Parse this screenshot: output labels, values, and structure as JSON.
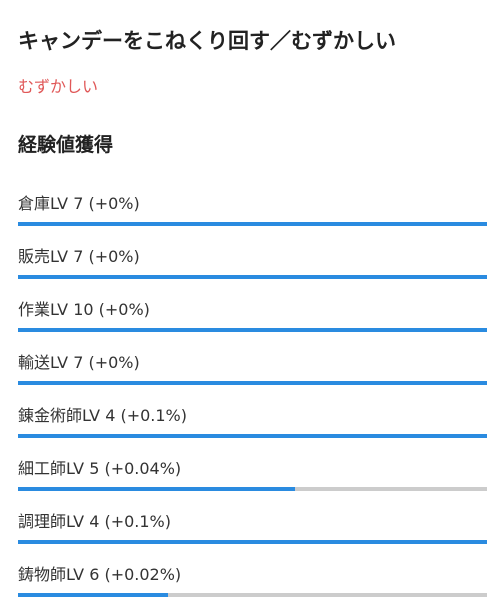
{
  "page": {
    "title": "キャンデーをこねくり回す／むずかしい",
    "difficulty": "むずかしい",
    "section_heading": "経験値獲得"
  },
  "colors": {
    "difficulty_text": "#e05858",
    "bar_fill": "#2a8be0",
    "bar_track": "#cccccc"
  },
  "exp": {
    "items": [
      {
        "label": "倉庫LV 7 (+0%)",
        "progress": 1.0
      },
      {
        "label": "販売LV 7 (+0%)",
        "progress": 1.0
      },
      {
        "label": "作業LV 10 (+0%)",
        "progress": 1.0
      },
      {
        "label": "輸送LV 7 (+0%)",
        "progress": 1.0
      },
      {
        "label": "錬金術師LV 4 (+0.1%)",
        "progress": 1.0
      },
      {
        "label": "細工師LV 5 (+0.04%)",
        "progress": 0.59
      },
      {
        "label": "調理師LV 4 (+0.1%)",
        "progress": 1.0
      },
      {
        "label": "鋳物師LV 6 (+0.02%)",
        "progress": 0.32
      }
    ]
  }
}
